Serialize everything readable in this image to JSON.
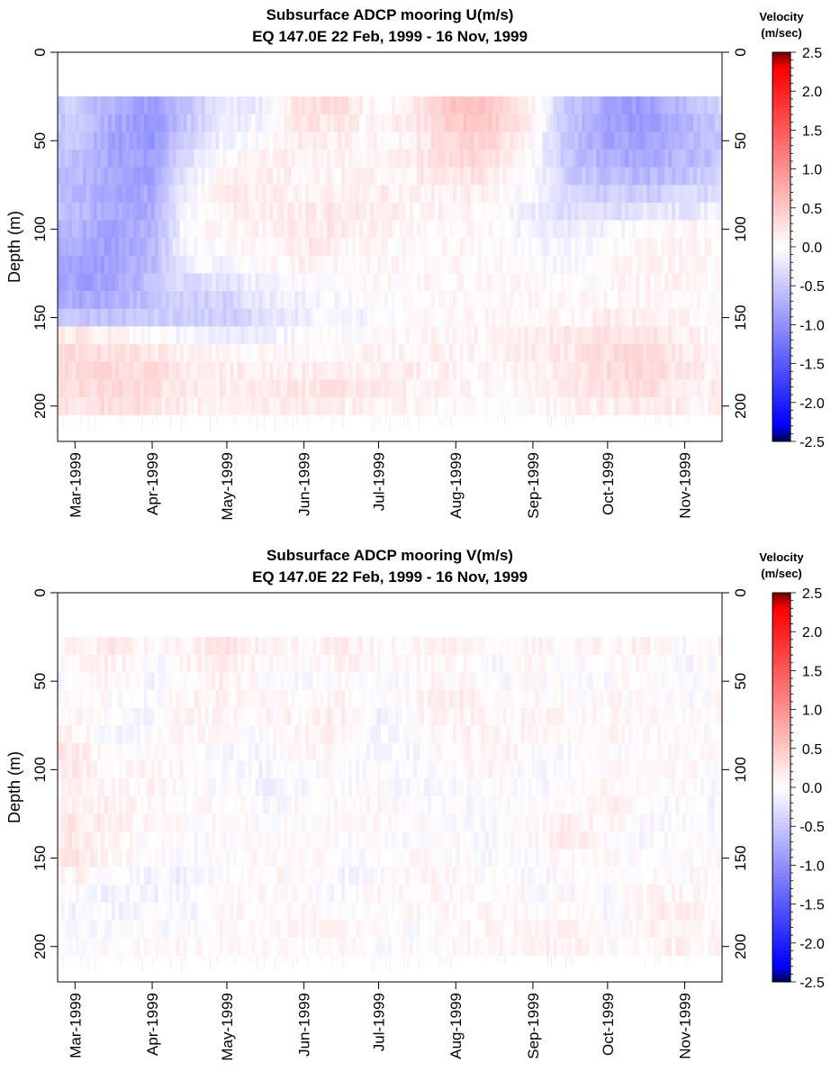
{
  "chart_data": [
    {
      "type": "heatmap",
      "title": "Subsurface ADCP mooring U(m/s)",
      "subtitle": "EQ 147.0E      22 Feb, 1999 - 16 Nov, 1999",
      "ylabel": "Depth (m)",
      "xlabel": "",
      "x_range": [
        "1999-02-22",
        "1999-11-16"
      ],
      "xtick_labels": [
        "Mar-1999",
        "Apr-1999",
        "May-1999",
        "Jun-1999",
        "Jul-1999",
        "Aug-1999",
        "Sep-1999",
        "Oct-1999",
        "Nov-1999"
      ],
      "xtick_dates": [
        "1999-03-01",
        "1999-04-01",
        "1999-05-01",
        "1999-06-01",
        "1999-07-01",
        "1999-08-01",
        "1999-09-01",
        "1999-10-01",
        "1999-11-01"
      ],
      "ylim": [
        0,
        220
      ],
      "y_inverted": true,
      "ytick_values": [
        0,
        50,
        100,
        150,
        200
      ],
      "colorbar": {
        "title": "Velocity",
        "units": "(m/sec)",
        "range": [
          -2.5,
          2.5
        ],
        "tick_values": [
          2.5,
          2.0,
          1.5,
          1.0,
          0.5,
          0.0,
          -0.5,
          -1.0,
          -1.5,
          -2.0,
          -2.5
        ],
        "tick_labels": [
          "2.5",
          "2.0",
          "1.5",
          "1.0",
          "0.5",
          "0.0",
          "-0.5",
          "-1.0",
          "-1.5",
          "-2.0",
          "-2.5"
        ],
        "colors": [
          "#00004a",
          "#0000ff",
          "#ffffff",
          "#ff0000",
          "#6a0000"
        ]
      },
      "depth_bins": [
        30,
        40,
        50,
        60,
        70,
        80,
        90,
        100,
        110,
        120,
        130,
        140,
        150,
        160,
        170,
        180,
        190,
        200
      ],
      "time_columns": [
        "1999-03-01",
        "1999-03-15",
        "1999-04-01",
        "1999-04-15",
        "1999-05-01",
        "1999-05-15",
        "1999-06-01",
        "1999-06-15",
        "1999-07-01",
        "1999-07-15",
        "1999-08-01",
        "1999-08-15",
        "1999-09-01",
        "1999-09-15",
        "1999-10-01",
        "1999-10-15",
        "1999-11-01",
        "1999-11-15"
      ],
      "values": [
        [
          -0.45,
          -0.7,
          -0.9,
          -0.5,
          -0.2,
          -0.2,
          0.3,
          0.3,
          0.0,
          0.2,
          0.55,
          0.55,
          0.1,
          -0.5,
          -0.8,
          -0.9,
          -0.6,
          -0.4
        ],
        [
          -0.5,
          -0.75,
          -0.95,
          -0.5,
          -0.15,
          -0.1,
          0.25,
          0.2,
          0.05,
          0.2,
          0.5,
          0.5,
          0.1,
          -0.5,
          -0.8,
          -0.9,
          -0.7,
          -0.45
        ],
        [
          -0.5,
          -0.8,
          -0.95,
          -0.4,
          -0.1,
          0.0,
          0.2,
          0.15,
          0.05,
          0.15,
          0.4,
          0.4,
          0.0,
          -0.55,
          -0.8,
          -0.85,
          -0.7,
          -0.5
        ],
        [
          -0.55,
          -0.8,
          -0.9,
          -0.3,
          0.05,
          0.1,
          0.15,
          0.1,
          0.1,
          0.15,
          0.35,
          0.3,
          0.0,
          -0.5,
          -0.75,
          -0.8,
          -0.65,
          -0.5
        ],
        [
          -0.6,
          -0.8,
          -0.85,
          -0.2,
          0.1,
          0.15,
          0.1,
          0.1,
          0.1,
          0.15,
          0.25,
          0.2,
          -0.05,
          -0.45,
          -0.6,
          -0.65,
          -0.55,
          -0.4
        ],
        [
          -0.6,
          -0.8,
          -0.8,
          -0.1,
          0.15,
          0.15,
          0.1,
          0.1,
          0.15,
          0.1,
          0.15,
          0.1,
          -0.1,
          -0.4,
          -0.45,
          -0.45,
          -0.35,
          -0.3
        ],
        [
          -0.6,
          -0.8,
          -0.75,
          -0.05,
          0.15,
          0.15,
          0.15,
          0.2,
          0.15,
          0.1,
          0.1,
          0.05,
          -0.15,
          -0.3,
          -0.3,
          -0.25,
          -0.2,
          -0.15
        ],
        [
          -0.7,
          -0.85,
          -0.7,
          0.0,
          0.1,
          0.1,
          0.2,
          0.2,
          0.1,
          0.05,
          0.05,
          0.05,
          -0.1,
          -0.2,
          -0.1,
          0.0,
          0.05,
          0.05
        ],
        [
          -0.75,
          -0.85,
          -0.65,
          -0.05,
          0.05,
          0.05,
          0.2,
          0.15,
          0.05,
          0.05,
          0.05,
          0.05,
          -0.05,
          -0.1,
          0.0,
          0.1,
          0.1,
          0.05
        ],
        [
          -0.8,
          -0.85,
          -0.6,
          -0.15,
          -0.1,
          0.0,
          0.1,
          0.05,
          0.05,
          0.05,
          0.05,
          0.05,
          0.0,
          -0.05,
          0.05,
          0.1,
          0.1,
          0.05
        ],
        [
          -0.85,
          -0.85,
          -0.55,
          -0.3,
          -0.25,
          -0.1,
          0.0,
          0.0,
          0.05,
          0.05,
          0.05,
          0.05,
          0.05,
          0.0,
          0.05,
          0.1,
          0.1,
          0.0
        ],
        [
          -0.75,
          -0.75,
          -0.55,
          -0.45,
          -0.4,
          -0.2,
          -0.1,
          -0.05,
          0.0,
          0.05,
          0.05,
          0.05,
          0.05,
          0.05,
          0.1,
          0.1,
          0.05,
          0.0
        ],
        [
          -0.5,
          -0.55,
          -0.45,
          -0.45,
          -0.45,
          -0.3,
          -0.15,
          -0.1,
          -0.05,
          0.0,
          0.05,
          0.05,
          0.1,
          0.1,
          0.15,
          0.15,
          0.1,
          0.0
        ],
        [
          0.2,
          0.15,
          0.0,
          -0.1,
          -0.2,
          -0.15,
          -0.05,
          0.0,
          0.05,
          0.05,
          0.05,
          0.1,
          0.15,
          0.2,
          0.25,
          0.25,
          0.15,
          0.05
        ],
        [
          0.3,
          0.3,
          0.2,
          0.1,
          0.05,
          0.05,
          0.05,
          0.05,
          0.1,
          0.1,
          0.1,
          0.1,
          0.15,
          0.2,
          0.3,
          0.3,
          0.2,
          0.1
        ],
        [
          0.3,
          0.35,
          0.3,
          0.2,
          0.15,
          0.15,
          0.15,
          0.15,
          0.2,
          0.15,
          0.1,
          0.1,
          0.1,
          0.2,
          0.3,
          0.35,
          0.2,
          0.1
        ],
        [
          0.3,
          0.35,
          0.3,
          0.2,
          0.15,
          0.2,
          0.2,
          0.2,
          0.2,
          0.15,
          0.1,
          0.05,
          0.05,
          0.15,
          0.25,
          0.3,
          0.2,
          0.15
        ],
        [
          0.25,
          0.3,
          0.25,
          0.15,
          0.1,
          0.15,
          0.15,
          0.15,
          0.15,
          0.1,
          0.05,
          0.0,
          0.05,
          0.1,
          0.15,
          0.2,
          0.15,
          0.1
        ]
      ]
    },
    {
      "type": "heatmap",
      "title": "Subsurface ADCP mooring V(m/s)",
      "subtitle": "EQ 147.0E      22 Feb, 1999 - 16 Nov, 1999",
      "ylabel": "Depth (m)",
      "xlabel": "",
      "x_range": [
        "1999-02-22",
        "1999-11-16"
      ],
      "xtick_labels": [
        "Mar-1999",
        "Apr-1999",
        "May-1999",
        "Jun-1999",
        "Jul-1999",
        "Aug-1999",
        "Sep-1999",
        "Oct-1999",
        "Nov-1999"
      ],
      "xtick_dates": [
        "1999-03-01",
        "1999-04-01",
        "1999-05-01",
        "1999-06-01",
        "1999-07-01",
        "1999-08-01",
        "1999-09-01",
        "1999-10-01",
        "1999-11-01"
      ],
      "ylim": [
        0,
        220
      ],
      "y_inverted": true,
      "ytick_values": [
        0,
        50,
        100,
        150,
        200
      ],
      "colorbar": {
        "title": "Velocity",
        "units": "(m/sec)",
        "range": [
          -2.5,
          2.5
        ],
        "tick_values": [
          2.5,
          2.0,
          1.5,
          1.0,
          0.5,
          0.0,
          -0.5,
          -1.0,
          -1.5,
          -2.0,
          -2.5
        ],
        "tick_labels": [
          "2.5",
          "2.0",
          "1.5",
          "1.0",
          "0.5",
          "0.0",
          "-0.5",
          "-1.0",
          "-1.5",
          "-2.0",
          "-2.5"
        ],
        "colors": [
          "#00004a",
          "#0000ff",
          "#ffffff",
          "#ff0000",
          "#6a0000"
        ]
      },
      "depth_bins": [
        30,
        40,
        50,
        60,
        70,
        80,
        90,
        100,
        110,
        120,
        130,
        140,
        150,
        160,
        170,
        180,
        190,
        200
      ],
      "time_columns": [
        "1999-03-01",
        "1999-03-15",
        "1999-04-01",
        "1999-04-15",
        "1999-05-01",
        "1999-05-15",
        "1999-06-01",
        "1999-06-15",
        "1999-07-01",
        "1999-07-15",
        "1999-08-01",
        "1999-08-15",
        "1999-09-01",
        "1999-09-15",
        "1999-10-01",
        "1999-10-15",
        "1999-11-01",
        "1999-11-15"
      ],
      "values": [
        [
          0.1,
          0.2,
          0.05,
          0.15,
          0.25,
          0.1,
          0.05,
          0.15,
          0.05,
          0.1,
          0.15,
          0.05,
          0.1,
          0.05,
          0.1,
          0.15,
          -0.05,
          0.1
        ],
        [
          0.0,
          0.15,
          -0.05,
          0.1,
          0.2,
          0.05,
          0.0,
          0.1,
          0.0,
          0.05,
          0.1,
          -0.05,
          0.05,
          0.0,
          0.05,
          0.1,
          -0.1,
          0.05
        ],
        [
          -0.05,
          0.1,
          -0.1,
          0.05,
          0.15,
          0.0,
          -0.05,
          0.05,
          -0.05,
          0.0,
          0.15,
          -0.05,
          0.0,
          -0.05,
          0.0,
          0.05,
          -0.1,
          0.05
        ],
        [
          0.05,
          0.0,
          -0.1,
          0.1,
          0.1,
          0.05,
          0.05,
          0.1,
          -0.05,
          0.05,
          0.2,
          0.0,
          0.05,
          0.0,
          0.05,
          0.05,
          -0.05,
          0.05
        ],
        [
          0.1,
          -0.05,
          -0.05,
          0.15,
          0.05,
          0.05,
          0.1,
          0.15,
          -0.1,
          0.05,
          0.15,
          0.05,
          0.1,
          0.05,
          0.05,
          0.05,
          0.0,
          0.05
        ],
        [
          0.15,
          -0.1,
          0.0,
          0.1,
          0.0,
          -0.05,
          0.1,
          0.1,
          -0.1,
          0.0,
          0.1,
          0.1,
          0.05,
          0.0,
          0.05,
          0.0,
          0.0,
          0.0
        ],
        [
          0.2,
          -0.05,
          0.05,
          0.05,
          -0.05,
          -0.05,
          0.05,
          0.05,
          -0.1,
          -0.05,
          0.05,
          0.15,
          0.0,
          -0.05,
          0.0,
          0.0,
          0.05,
          0.0
        ],
        [
          0.15,
          0.05,
          0.1,
          0.05,
          -0.05,
          -0.1,
          0.0,
          0.0,
          -0.05,
          -0.05,
          0.0,
          0.1,
          -0.05,
          -0.05,
          0.05,
          0.05,
          0.05,
          0.0
        ],
        [
          0.1,
          0.1,
          0.1,
          0.0,
          0.0,
          -0.1,
          -0.05,
          0.0,
          0.0,
          -0.05,
          -0.05,
          0.05,
          -0.05,
          0.0,
          0.1,
          0.05,
          0.0,
          -0.05
        ],
        [
          0.15,
          0.15,
          0.05,
          0.0,
          0.05,
          -0.05,
          -0.05,
          0.05,
          0.05,
          0.0,
          -0.05,
          0.0,
          0.0,
          0.05,
          0.15,
          0.0,
          -0.05,
          -0.05
        ],
        [
          0.2,
          0.15,
          0.05,
          0.0,
          0.05,
          0.0,
          0.0,
          0.05,
          0.05,
          0.0,
          -0.05,
          -0.05,
          0.05,
          0.15,
          0.1,
          -0.05,
          -0.05,
          -0.05
        ],
        [
          0.2,
          0.1,
          0.0,
          -0.05,
          0.0,
          0.0,
          0.05,
          0.0,
          0.0,
          0.0,
          0.0,
          -0.05,
          0.05,
          0.2,
          0.05,
          -0.05,
          0.0,
          0.0
        ],
        [
          0.25,
          0.1,
          0.0,
          -0.05,
          0.0,
          0.05,
          0.05,
          -0.05,
          0.0,
          0.05,
          0.0,
          -0.05,
          0.0,
          0.1,
          0.05,
          0.0,
          0.0,
          0.05
        ],
        [
          0.1,
          0.0,
          -0.1,
          -0.15,
          -0.05,
          0.05,
          0.0,
          -0.1,
          0.0,
          0.05,
          0.05,
          0.0,
          -0.05,
          0.0,
          0.0,
          0.0,
          0.05,
          0.05
        ],
        [
          -0.05,
          -0.1,
          -0.1,
          -0.1,
          0.0,
          0.05,
          0.0,
          -0.05,
          0.05,
          0.05,
          0.05,
          0.05,
          -0.05,
          0.0,
          -0.05,
          0.05,
          0.1,
          0.05
        ],
        [
          -0.1,
          -0.1,
          -0.05,
          -0.05,
          0.05,
          0.05,
          0.05,
          0.0,
          0.05,
          0.05,
          0.05,
          0.1,
          0.0,
          0.05,
          -0.05,
          0.1,
          0.15,
          0.0
        ],
        [
          -0.05,
          -0.05,
          0.0,
          0.0,
          0.05,
          0.05,
          0.05,
          0.05,
          0.05,
          0.0,
          0.05,
          0.1,
          0.05,
          0.1,
          -0.05,
          0.05,
          0.2,
          0.05
        ],
        [
          0.0,
          0.0,
          0.05,
          0.05,
          0.05,
          0.05,
          0.0,
          0.05,
          0.0,
          0.0,
          0.05,
          0.1,
          0.1,
          0.1,
          0.0,
          0.05,
          0.15,
          0.05
        ]
      ]
    }
  ]
}
